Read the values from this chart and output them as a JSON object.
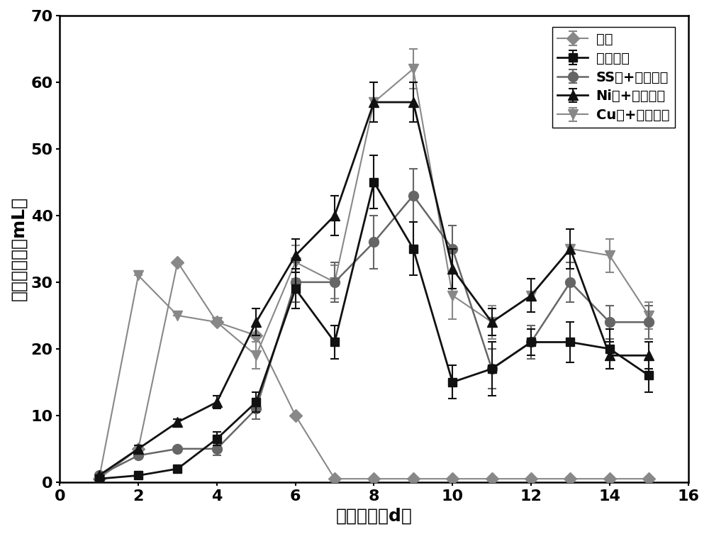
{
  "title": "",
  "xlabel": "运行时间（d）",
  "ylabel": "日产甲烷量（mL）",
  "xlim": [
    0,
    16
  ],
  "ylim": [
    0,
    70
  ],
  "xticks": [
    0,
    2,
    4,
    6,
    8,
    10,
    12,
    14,
    16
  ],
  "yticks": [
    0,
    10,
    20,
    30,
    40,
    50,
    60,
    70
  ],
  "series": [
    {
      "label": "厉氧",
      "color": "#888888",
      "marker": "D",
      "markersize": 9,
      "linewidth": 1.5,
      "zorder": 3,
      "x": [
        1,
        2,
        3,
        4,
        5,
        6,
        7,
        8,
        9,
        10,
        11,
        12,
        13,
        14,
        15
      ],
      "y": [
        0.5,
        5.0,
        33.0,
        24.0,
        22.0,
        10.0,
        0.5,
        0.5,
        0.5,
        0.5,
        0.5,
        0.5,
        0.5,
        0.5,
        0.5
      ],
      "yerr": [
        0,
        0,
        0,
        0,
        0,
        0,
        0,
        0,
        0,
        0,
        0,
        0,
        0,
        0,
        0
      ]
    },
    {
      "label": "碱预处理",
      "color": "#111111",
      "marker": "s",
      "markersize": 9,
      "linewidth": 2.0,
      "zorder": 5,
      "x": [
        1,
        2,
        3,
        4,
        5,
        6,
        7,
        8,
        9,
        10,
        11,
        12,
        13,
        14,
        15
      ],
      "y": [
        0.5,
        1.0,
        2.0,
        6.5,
        12.0,
        29.0,
        21.0,
        45.0,
        35.0,
        15.0,
        17.0,
        21.0,
        21.0,
        20.0,
        16.0
      ],
      "yerr": [
        0,
        0,
        0,
        1.0,
        1.5,
        3.0,
        2.5,
        4.0,
        4.0,
        2.5,
        4.0,
        2.0,
        3.0,
        3.0,
        2.5
      ]
    },
    {
      "label": "SS网+碱预处理",
      "color": "#666666",
      "marker": "o",
      "markersize": 10,
      "linewidth": 1.8,
      "zorder": 4,
      "x": [
        1,
        2,
        3,
        4,
        5,
        6,
        7,
        8,
        9,
        10,
        11,
        12,
        13,
        14,
        15
      ],
      "y": [
        1.0,
        4.0,
        5.0,
        5.0,
        11.0,
        30.0,
        30.0,
        36.0,
        43.0,
        35.0,
        17.0,
        21.0,
        30.0,
        24.0,
        24.0
      ],
      "yerr": [
        0,
        0,
        0,
        1.0,
        1.5,
        3.0,
        3.0,
        4.0,
        4.0,
        3.5,
        3.0,
        2.5,
        3.0,
        2.5,
        2.5
      ]
    },
    {
      "label": "Ni网+碱预处理",
      "color": "#111111",
      "marker": "^",
      "markersize": 10,
      "linewidth": 2.0,
      "zorder": 6,
      "x": [
        1,
        2,
        3,
        4,
        5,
        6,
        7,
        8,
        9,
        10,
        11,
        12,
        13,
        14,
        15
      ],
      "y": [
        1.0,
        5.0,
        9.0,
        12.0,
        24.0,
        34.0,
        40.0,
        57.0,
        57.0,
        32.0,
        24.0,
        28.0,
        35.0,
        19.0,
        19.0
      ],
      "yerr": [
        0,
        0.5,
        0.5,
        1.0,
        2.0,
        2.5,
        3.0,
        3.0,
        3.0,
        3.0,
        2.0,
        2.5,
        3.0,
        2.0,
        2.0
      ]
    },
    {
      "label": "Cu网+碱预处理",
      "color": "#888888",
      "marker": "v",
      "markersize": 10,
      "linewidth": 1.5,
      "zorder": 2,
      "x": [
        1,
        2,
        3,
        4,
        5,
        6,
        7,
        8,
        9,
        10,
        11,
        12,
        13,
        14,
        15
      ],
      "y": [
        0.5,
        31.0,
        25.0,
        24.0,
        19.0,
        33.0,
        30.0,
        57.0,
        62.0,
        28.0,
        24.0,
        28.0,
        35.0,
        34.0,
        25.0
      ],
      "yerr": [
        0,
        0,
        0,
        0,
        2.0,
        2.5,
        2.5,
        3.0,
        3.0,
        3.5,
        2.5,
        2.5,
        3.0,
        2.5,
        2.0
      ]
    }
  ],
  "background_color": "#ffffff",
  "legend_fontsize": 14,
  "axis_label_fontsize": 18,
  "tick_fontsize": 16,
  "bold_text": true
}
